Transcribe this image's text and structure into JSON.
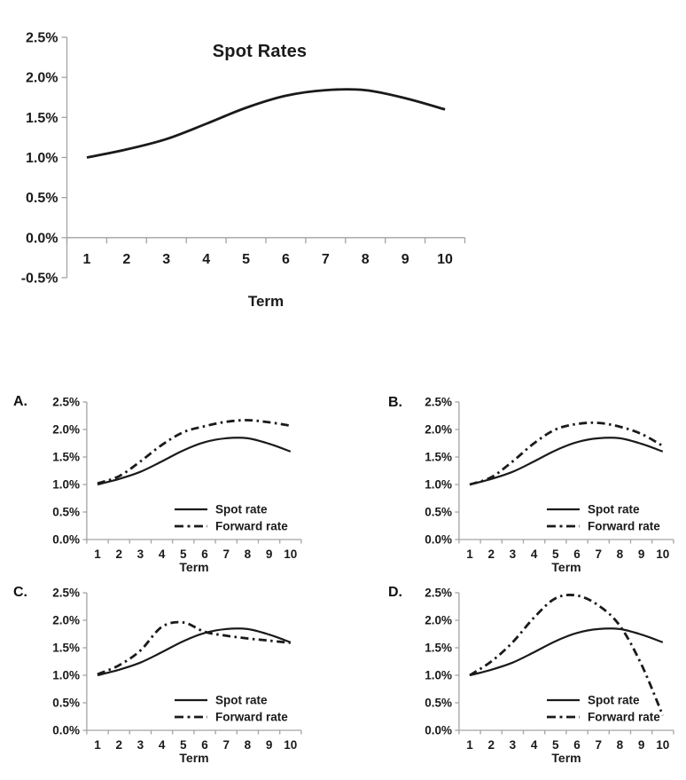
{
  "figure": {
    "background": "#ffffff",
    "line_color": "#1a1a1a",
    "axis_color": "#a3a3a3",
    "text_color": "#1a1a1a"
  },
  "chart_data": [
    {
      "id": "main",
      "type": "line",
      "title": "Spot Rates",
      "xlabel": "Term",
      "x": [
        1,
        2,
        3,
        4,
        5,
        6,
        7,
        8,
        9,
        10
      ],
      "ylim": [
        -0.5,
        2.5
      ],
      "yticks": [
        -0.5,
        0.0,
        0.5,
        1.0,
        1.5,
        2.0,
        2.5
      ],
      "ytick_labels": [
        "-0.5%",
        "0.0%",
        "0.5%",
        "1.0%",
        "1.5%",
        "2.0%",
        "2.5%"
      ],
      "grid": false,
      "legend": false,
      "series": [
        {
          "name": "Spot rate",
          "style": "solid",
          "values": [
            1.0,
            1.1,
            1.23,
            1.42,
            1.62,
            1.77,
            1.84,
            1.84,
            1.74,
            1.6
          ]
        }
      ]
    },
    {
      "id": "A",
      "panel_label": "A.",
      "type": "line",
      "title": "",
      "xlabel": "Term",
      "x": [
        1,
        2,
        3,
        4,
        5,
        6,
        7,
        8,
        9,
        10
      ],
      "ylim": [
        0.0,
        2.5
      ],
      "yticks": [
        0.0,
        0.5,
        1.0,
        1.5,
        2.0,
        2.5
      ],
      "ytick_labels": [
        "0.0%",
        "0.5%",
        "1.0%",
        "1.5%",
        "2.0%",
        "2.5%"
      ],
      "grid": false,
      "legend": true,
      "legend_position": "inside-lower-right",
      "series": [
        {
          "name": "Spot rate",
          "style": "solid",
          "values": [
            1.0,
            1.1,
            1.23,
            1.42,
            1.62,
            1.77,
            1.84,
            1.84,
            1.74,
            1.6
          ]
        },
        {
          "name": "Forward rate",
          "style": "dash-dot",
          "values": [
            1.02,
            1.15,
            1.42,
            1.72,
            1.95,
            2.06,
            2.14,
            2.17,
            2.13,
            2.07
          ]
        }
      ]
    },
    {
      "id": "B",
      "panel_label": "B.",
      "type": "line",
      "title": "",
      "xlabel": "Term",
      "x": [
        1,
        2,
        3,
        4,
        5,
        6,
        7,
        8,
        9,
        10
      ],
      "ylim": [
        0.0,
        2.5
      ],
      "yticks": [
        0.0,
        0.5,
        1.0,
        1.5,
        2.0,
        2.5
      ],
      "ytick_labels": [
        "0.0%",
        "0.5%",
        "1.0%",
        "1.5%",
        "2.0%",
        "2.5%"
      ],
      "grid": false,
      "legend": true,
      "legend_position": "inside-lower-right",
      "series": [
        {
          "name": "Spot rate",
          "style": "solid",
          "values": [
            1.0,
            1.1,
            1.23,
            1.42,
            1.62,
            1.77,
            1.84,
            1.84,
            1.74,
            1.6
          ]
        },
        {
          "name": "Forward rate",
          "style": "dash-dot",
          "values": [
            1.0,
            1.13,
            1.42,
            1.75,
            2.0,
            2.1,
            2.12,
            2.05,
            1.92,
            1.7
          ]
        }
      ]
    },
    {
      "id": "C",
      "panel_label": "C.",
      "type": "line",
      "title": "",
      "xlabel": "Term",
      "x": [
        1,
        2,
        3,
        4,
        5,
        6,
        7,
        8,
        9,
        10
      ],
      "ylim": [
        0.0,
        2.5
      ],
      "yticks": [
        0.0,
        0.5,
        1.0,
        1.5,
        2.0,
        2.5
      ],
      "ytick_labels": [
        "0.0%",
        "0.5%",
        "1.0%",
        "1.5%",
        "2.0%",
        "2.5%"
      ],
      "grid": false,
      "legend": true,
      "legend_position": "inside-lower-right",
      "series": [
        {
          "name": "Spot rate",
          "style": "solid",
          "values": [
            1.0,
            1.1,
            1.23,
            1.42,
            1.62,
            1.77,
            1.84,
            1.84,
            1.74,
            1.6
          ]
        },
        {
          "name": "Forward rate",
          "style": "dash-dot",
          "values": [
            1.02,
            1.18,
            1.45,
            1.88,
            1.96,
            1.79,
            1.72,
            1.67,
            1.63,
            1.59
          ]
        }
      ]
    },
    {
      "id": "D",
      "panel_label": "D.",
      "type": "line",
      "title": "",
      "xlabel": "Term",
      "x": [
        1,
        2,
        3,
        4,
        5,
        6,
        7,
        8,
        9,
        10
      ],
      "ylim": [
        0.0,
        2.5
      ],
      "yticks": [
        0.0,
        0.5,
        1.0,
        1.5,
        2.0,
        2.5
      ],
      "ytick_labels": [
        "0.0%",
        "0.5%",
        "1.0%",
        "1.5%",
        "2.0%",
        "2.5%"
      ],
      "grid": false,
      "legend": true,
      "legend_position": "inside-lower-right",
      "series": [
        {
          "name": "Spot rate",
          "style": "solid",
          "values": [
            1.0,
            1.1,
            1.23,
            1.42,
            1.62,
            1.77,
            1.84,
            1.84,
            1.74,
            1.6
          ]
        },
        {
          "name": "Forward rate",
          "style": "dash-dot",
          "values": [
            1.0,
            1.25,
            1.6,
            2.05,
            2.4,
            2.45,
            2.27,
            1.9,
            1.2,
            0.27
          ]
        }
      ]
    }
  ]
}
